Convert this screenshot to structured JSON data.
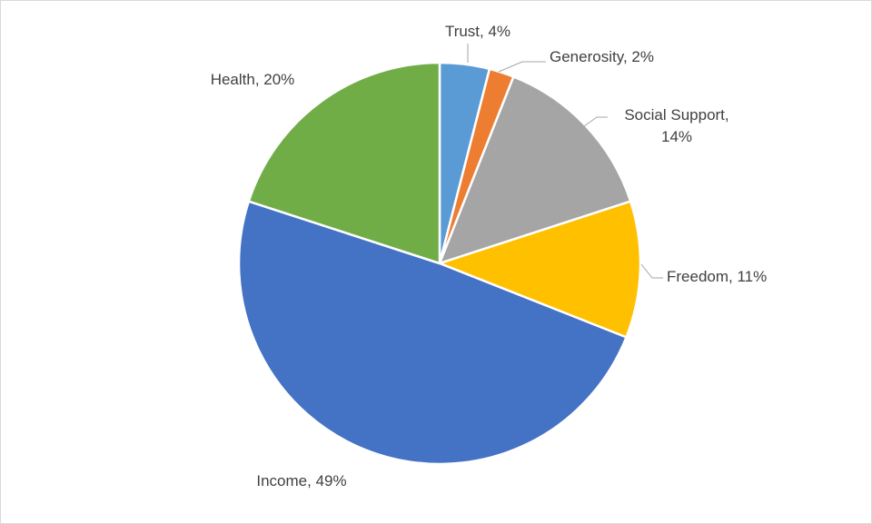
{
  "chart_data": {
    "type": "pie",
    "title": "",
    "categories": [
      "Trust",
      "Generosity",
      "Social Support",
      "Freedom",
      "Income",
      "Health"
    ],
    "values": [
      4,
      2,
      14,
      11,
      49,
      20
    ],
    "colors": [
      "#5b9bd5",
      "#ed7d31",
      "#a5a5a5",
      "#ffc000",
      "#4472c4",
      "#70ad47"
    ],
    "labels": [
      {
        "lines": [
          "Trust, 4%"
        ]
      },
      {
        "lines": [
          "Generosity, 2%"
        ]
      },
      {
        "lines": [
          "Social Support,",
          "14%"
        ]
      },
      {
        "lines": [
          "Freedom, 11%"
        ]
      },
      {
        "lines": [
          "Income, 49%"
        ]
      },
      {
        "lines": [
          "Health, 20%"
        ]
      }
    ],
    "legend": "none"
  }
}
